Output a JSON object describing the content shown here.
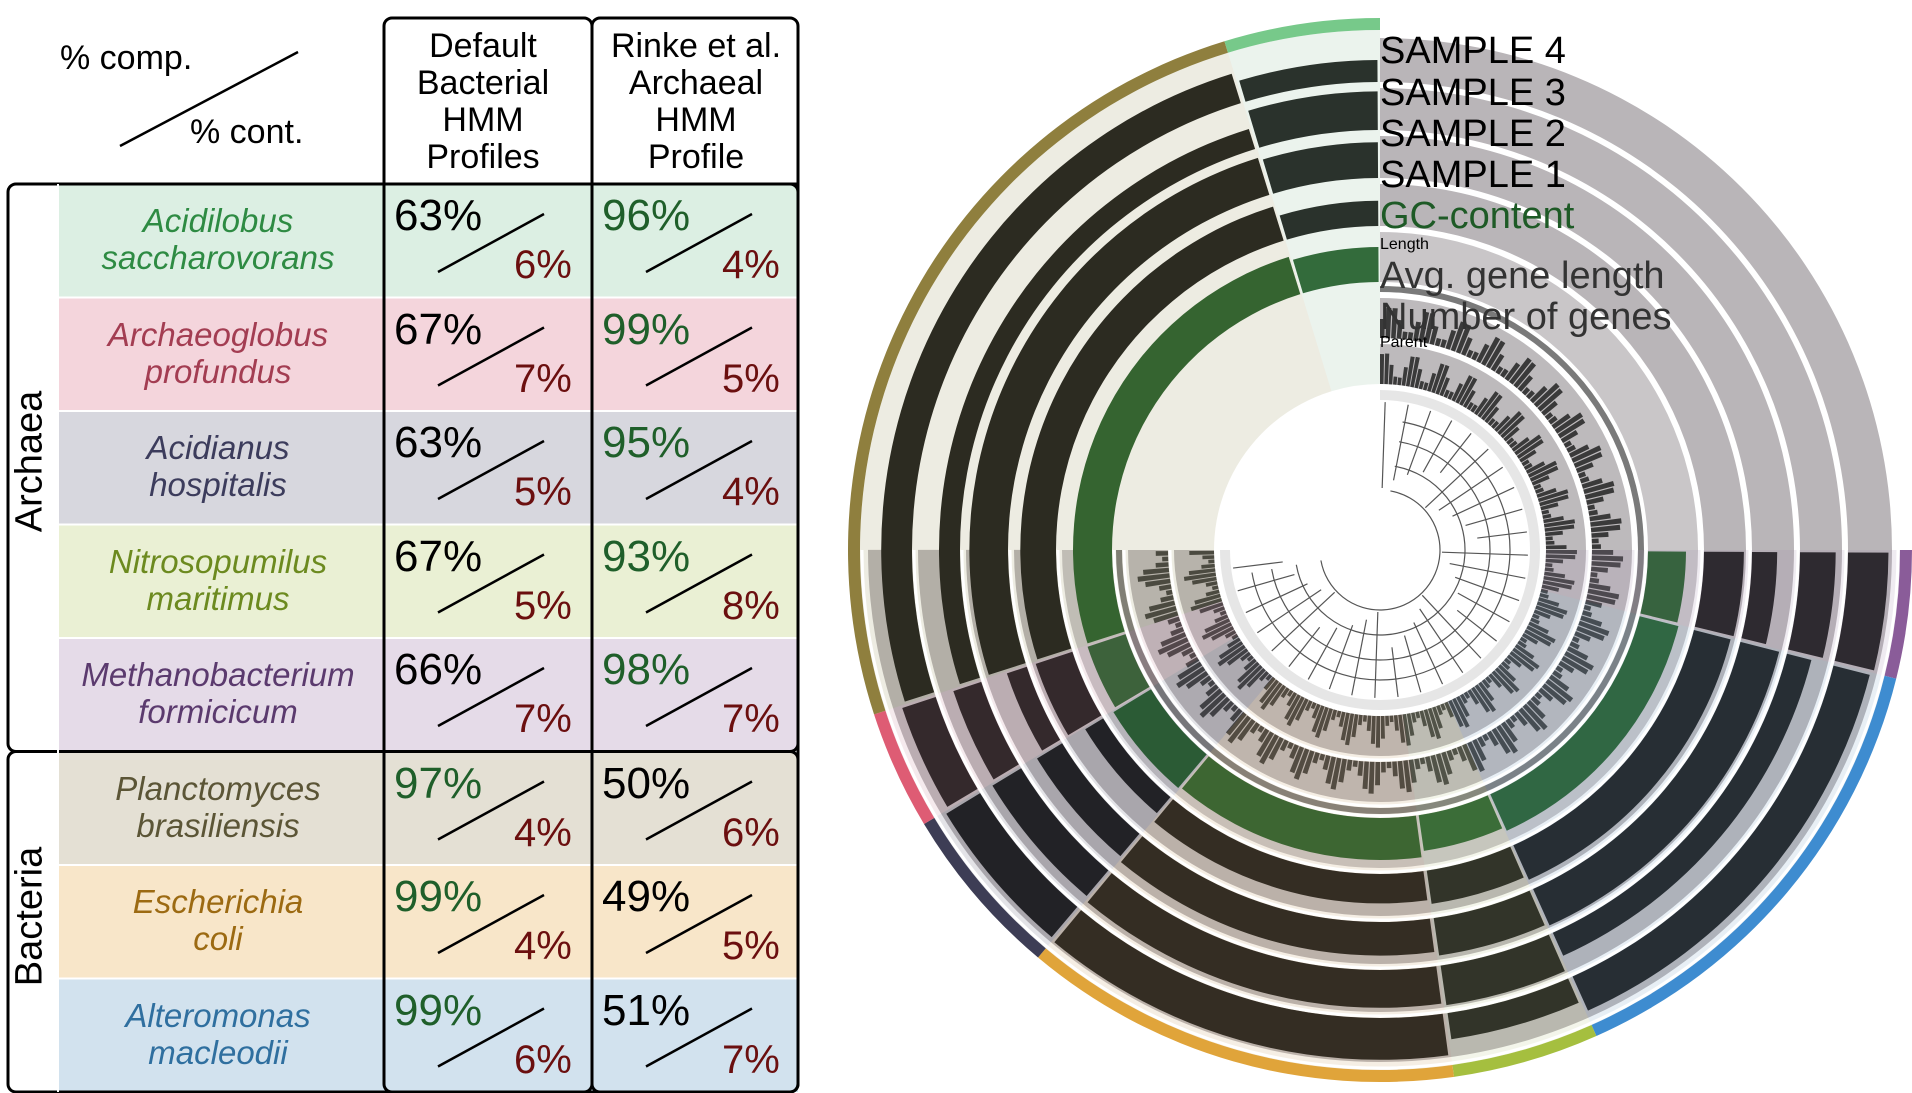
{
  "table": {
    "header": {
      "completion_label": "% comp.",
      "contamination_label": "% cont.",
      "col1": [
        "Default",
        "Bacterial",
        "HMM",
        "Profiles"
      ],
      "col2": [
        "Rinke et al.",
        "Archaeal",
        "HMM",
        "Profile"
      ]
    },
    "groups": [
      "Archaea",
      "Bacteria"
    ],
    "rows": [
      {
        "name": [
          "Acidilobus",
          "saccharovorans"
        ],
        "group": "Archaea",
        "bg": "#dcefe3",
        "color": "#2e8b43",
        "bact": {
          "comp": "63%",
          "cont": "6%"
        },
        "arch": {
          "comp": "96%",
          "cont": "4%"
        }
      },
      {
        "name": [
          "Archaeoglobus",
          "profundus"
        ],
        "group": "Archaea",
        "bg": "#f4d5dc",
        "color": "#a33d52",
        "bact": {
          "comp": "67%",
          "cont": "7%"
        },
        "arch": {
          "comp": "99%",
          "cont": "5%"
        }
      },
      {
        "name": [
          "Acidianus",
          "hospitalis"
        ],
        "group": "Archaea",
        "bg": "#d7d7de",
        "color": "#3c3c5c",
        "bact": {
          "comp": "63%",
          "cont": "5%"
        },
        "arch": {
          "comp": "95%",
          "cont": "4%"
        }
      },
      {
        "name": [
          "Nitrosopumilus",
          "maritimus"
        ],
        "group": "Archaea",
        "bg": "#eaf0d4",
        "color": "#6c8a1f",
        "bact": {
          "comp": "67%",
          "cont": "5%"
        },
        "arch": {
          "comp": "93%",
          "cont": "8%"
        }
      },
      {
        "name": [
          "Methanobacterium",
          "formicicum"
        ],
        "group": "Archaea",
        "bg": "#e5dbe8",
        "color": "#5b3a6e",
        "bact": {
          "comp": "66%",
          "cont": "7%"
        },
        "arch": {
          "comp": "98%",
          "cont": "7%"
        }
      },
      {
        "name": [
          "Planctomyces",
          "brasiliensis"
        ],
        "group": "Bacteria",
        "bg": "#e4e0d4",
        "color": "#5b5536",
        "bact": {
          "comp": "97%",
          "cont": "4%"
        },
        "arch": {
          "comp": "50%",
          "cont": "6%"
        }
      },
      {
        "name": [
          "Escherichia",
          "coli"
        ],
        "group": "Bacteria",
        "bg": "#f8e6c9",
        "color": "#9c6a12",
        "bact": {
          "comp": "99%",
          "cont": "4%"
        },
        "arch": {
          "comp": "49%",
          "cont": "5%"
        }
      },
      {
        "name": [
          "Alteromonas",
          "macleodii"
        ],
        "group": "Bacteria",
        "bg": "#d2e2ee",
        "color": "#2f6f9f",
        "bact": {
          "comp": "99%",
          "cont": "6%"
        },
        "arch": {
          "comp": "51%",
          "cont": "7%"
        }
      }
    ],
    "colors": {
      "high_completion": "#1f5f2a",
      "low_completion": "#000000",
      "contamination": "#6b0f0f"
    }
  },
  "wheel": {
    "layers": [
      {
        "label": "SAMPLE 4",
        "kind": "sample"
      },
      {
        "label": "SAMPLE 3",
        "kind": "sample"
      },
      {
        "label": "SAMPLE 2",
        "kind": "sample"
      },
      {
        "label": "SAMPLE 1",
        "kind": "sample"
      },
      {
        "label": "GC-content",
        "kind": "gc",
        "color": "#1e5a26"
      },
      {
        "label": "Length",
        "kind": "small"
      },
      {
        "label": "Avg. gene length",
        "kind": "gene"
      },
      {
        "label": "Number of genes",
        "kind": "gene"
      },
      {
        "label": "Parent",
        "kind": "small"
      }
    ],
    "bin_colors": [
      "#8f7f3e",
      "#77c98a",
      "#de5c74",
      "#3d3d55",
      "#e0a43a",
      "#a5bf3f",
      "#3e8cd0",
      "#8a5c99"
    ]
  }
}
